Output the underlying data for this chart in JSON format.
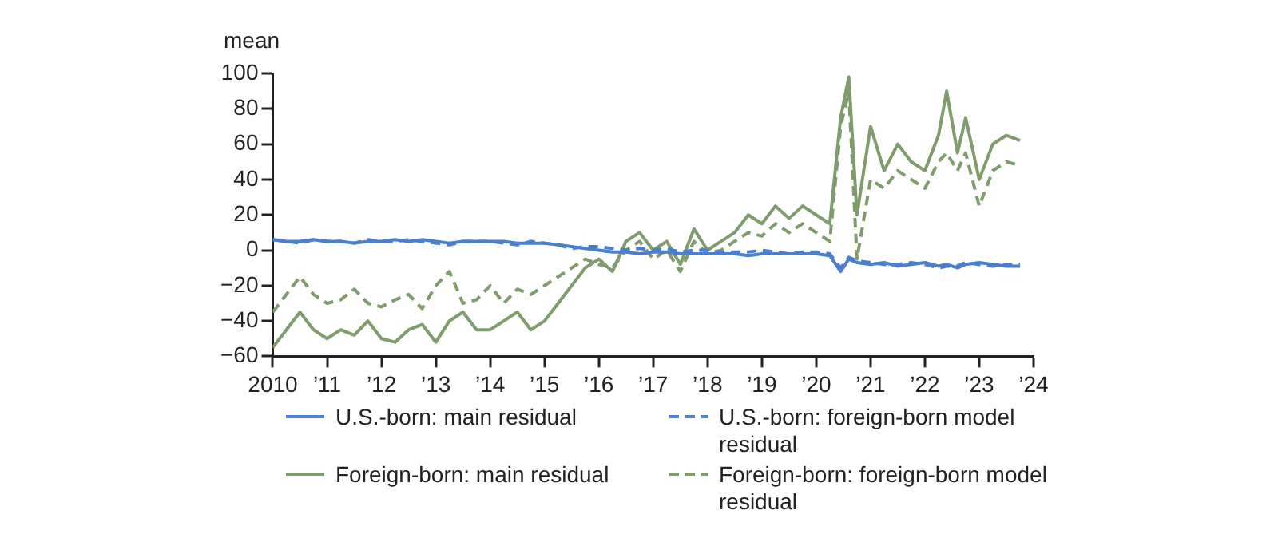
{
  "chart_data": {
    "type": "line",
    "ylabel": "mean",
    "xlim": [
      2010,
      2024
    ],
    "xticks": [
      2010,
      {
        "value": 2011,
        "label": "’11"
      },
      {
        "value": 2012,
        "label": "’12"
      },
      {
        "value": 2013,
        "label": "’13"
      },
      {
        "value": 2014,
        "label": "’14"
      },
      {
        "value": 2015,
        "label": "’15"
      },
      {
        "value": 2016,
        "label": "’16"
      },
      {
        "value": 2017,
        "label": "’17"
      },
      {
        "value": 2018,
        "label": "’18"
      },
      {
        "value": 2019,
        "label": "’19"
      },
      {
        "value": 2020,
        "label": "’20"
      },
      {
        "value": 2021,
        "label": "’21"
      },
      {
        "value": 2022,
        "label": "’22"
      },
      {
        "value": 2023,
        "label": "’23"
      },
      {
        "value": 2024,
        "label": "’24"
      }
    ],
    "ylim": [
      -60,
      100
    ],
    "yticks": [
      -60,
      -40,
      -20,
      0,
      20,
      40,
      60,
      80,
      100
    ],
    "grid": false,
    "legend": "bottom",
    "marker": "none",
    "x": [
      2010,
      2010.25,
      2010.5,
      2010.75,
      2011,
      2011.25,
      2011.5,
      2011.75,
      2012,
      2012.25,
      2012.5,
      2012.75,
      2013,
      2013.25,
      2013.5,
      2013.75,
      2014,
      2014.25,
      2014.5,
      2014.75,
      2015,
      2015.25,
      2015.5,
      2015.75,
      2016,
      2016.25,
      2016.5,
      2016.75,
      2017,
      2017.25,
      2017.5,
      2017.75,
      2018,
      2018.25,
      2018.5,
      2018.75,
      2019,
      2019.25,
      2019.5,
      2019.75,
      2020,
      2020.25,
      2020.45,
      2020.6,
      2020.75,
      2021,
      2021.25,
      2021.5,
      2021.75,
      2022,
      2022.25,
      2022.4,
      2022.6,
      2022.75,
      2023,
      2023.25,
      2023.5,
      2023.75
    ],
    "series": [
      {
        "name": "U.S.-born: main residual",
        "color": "#4a7fd0",
        "line_style": "solid",
        "values": [
          6,
          5,
          5,
          6,
          5,
          5,
          4,
          5,
          5,
          6,
          5,
          6,
          5,
          4,
          5,
          5,
          5,
          5,
          4,
          4,
          4,
          3,
          2,
          1,
          0,
          -1,
          -1,
          -2,
          -1,
          -1,
          -2,
          -2,
          -2,
          -2,
          -2,
          -3,
          -2,
          -2,
          -2,
          -2,
          -2,
          -3,
          -12,
          -5,
          -7,
          -8,
          -7,
          -9,
          -8,
          -7,
          -9,
          -8,
          -10,
          -8,
          -7,
          -8,
          -9,
          -9
        ]
      },
      {
        "name": "U.S.-born: foreign-born model residual",
        "color": "#4a7fd0",
        "line_style": "dashed",
        "values": [
          6,
          5,
          4,
          6,
          5,
          5,
          4,
          6,
          5,
          5,
          6,
          5,
          4,
          3,
          5,
          5,
          5,
          4,
          3,
          5,
          4,
          3,
          1,
          2,
          2,
          1,
          0,
          1,
          0,
          1,
          -1,
          0,
          0,
          -1,
          -1,
          -1,
          0,
          -1,
          -2,
          -1,
          -1,
          -2,
          -10,
          -4,
          -6,
          -7,
          -8,
          -8,
          -7,
          -8,
          -10,
          -9,
          -9,
          -7,
          -8,
          -9,
          -8,
          -8
        ]
      },
      {
        "name": "Foreign-born: main residual",
        "color": "#7f9c6c",
        "line_style": "solid",
        "values": [
          -55,
          -45,
          -35,
          -45,
          -50,
          -45,
          -48,
          -40,
          -50,
          -52,
          -45,
          -42,
          -52,
          -40,
          -35,
          -45,
          -45,
          -40,
          -35,
          -45,
          -40,
          -30,
          -20,
          -10,
          -5,
          -12,
          5,
          10,
          0,
          5,
          -8,
          12,
          0,
          5,
          10,
          20,
          15,
          25,
          18,
          25,
          20,
          15,
          75,
          98,
          20,
          70,
          45,
          60,
          50,
          45,
          65,
          90,
          55,
          75,
          40,
          60,
          65,
          62
        ]
      },
      {
        "name": "Foreign-born: foreign-born model residual",
        "color": "#7f9c6c",
        "line_style": "dashed",
        "values": [
          -35,
          -25,
          -15,
          -25,
          -30,
          -28,
          -22,
          -30,
          -32,
          -28,
          -25,
          -33,
          -20,
          -12,
          -30,
          -28,
          -20,
          -30,
          -22,
          -25,
          -20,
          -15,
          -10,
          -5,
          -8,
          -10,
          0,
          5,
          -5,
          0,
          -12,
          5,
          -2,
          0,
          5,
          10,
          8,
          15,
          10,
          15,
          10,
          5,
          70,
          90,
          -5,
          40,
          35,
          45,
          40,
          35,
          50,
          55,
          45,
          55,
          25,
          45,
          50,
          48
        ]
      }
    ]
  }
}
